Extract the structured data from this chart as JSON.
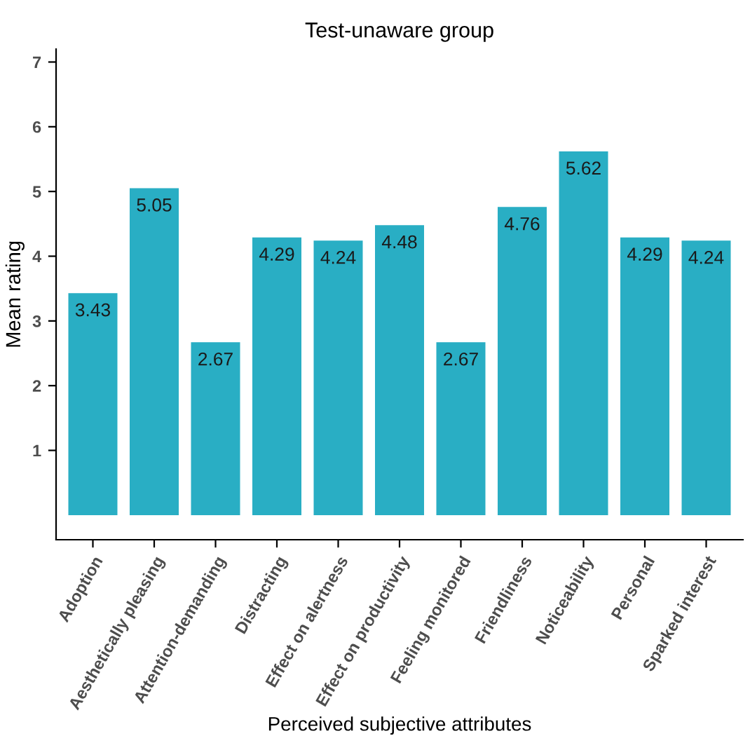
{
  "chart_data": {
    "type": "bar",
    "title": "Test-unaware group",
    "xlabel": "Perceived subjective attributes",
    "ylabel": "Mean rating",
    "categories": [
      "Adoption",
      "Aesthetically pleasing",
      "Attention-demanding",
      "Distracting",
      "Effect on alertness",
      "Effect on productivity",
      "Feeling monitored",
      "Friendliness",
      "Noticeability",
      "Personal",
      "Sparked interest"
    ],
    "values": [
      3.43,
      5.05,
      2.67,
      4.29,
      4.24,
      4.48,
      2.67,
      4.76,
      5.62,
      4.29,
      4.24
    ],
    "color": "#29aec4",
    "ylim": [
      -0.38,
      7.2
    ],
    "yticks": [
      1,
      2,
      3,
      4,
      5,
      6,
      7
    ],
    "grid": false,
    "data_labels": true
  }
}
